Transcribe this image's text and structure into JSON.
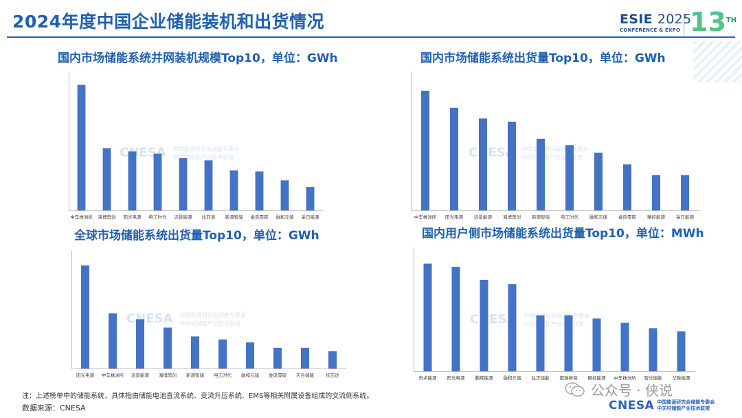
{
  "header": {
    "title": "2024年度中国企业储能装机和出货情况",
    "esie_name": "ESIE",
    "esie_year": "2025",
    "esie_sub": "CONFERENCE & EXPO",
    "edition_num": "13",
    "edition_sup": "TH"
  },
  "watermark": {
    "brand": "CNESA",
    "line1": "中国能源研究会储能专委会",
    "line2": "中关村储能产业技术联盟"
  },
  "footer": {
    "note": "注：上述榜单中的储能系统，具体指由储能电池直流系统、变流升压系统、EMS等相关附属设备组成的交流侧系统。",
    "source": "数据来源：CNESA",
    "wechat": "公众号 · 侠说",
    "logo_brand": "CNESA",
    "logo_line1": "中国能源研究会储能专委会",
    "logo_line2": "中关村储能产业技术联盟"
  },
  "colors": {
    "bar": "#4472c4",
    "title": "#1f5fb0",
    "axis": "#bfbfbf"
  },
  "chart_data": [
    {
      "type": "bar",
      "title": "国内市场储能系统并网装机规模Top10，单位：GWh",
      "categories": [
        "中车株洲所",
        "海博思创",
        "阳光电源",
        "电工时代",
        "远景能源",
        "比亚迪",
        "新源智储",
        "金风零碳",
        "融和元储",
        "采日能源"
      ],
      "values": [
        11.3,
        5.6,
        5.3,
        5.1,
        4.7,
        4.5,
        3.6,
        3.5,
        2.7,
        2.1
      ],
      "ylim": [
        0,
        12.5
      ],
      "grid": false,
      "legend": "none"
    },
    {
      "type": "bar",
      "title": "国内市场储能系统出货量Top10，单位：GWh",
      "categories": [
        "中车株洲所",
        "阳光电源",
        "远景能源",
        "海博思创",
        "新源智储",
        "电工时代",
        "融和元储",
        "金风零碳",
        "精控能源",
        "采日能源"
      ],
      "values": [
        11.2,
        9.6,
        8.6,
        8.3,
        6.7,
        6.1,
        5.4,
        4.3,
        3.3,
        3.3
      ],
      "ylim": [
        0,
        13
      ],
      "grid": false,
      "legend": "none"
    },
    {
      "type": "bar",
      "title": "全球市场储能系统出货量Top10，单位：GWh",
      "categories": [
        "阳光电源",
        "中车株洲所",
        "远景能源",
        "海博思创",
        "新源智储",
        "电工时代",
        "融和元储",
        "金风零碳",
        "天合储能",
        "坎芘达"
      ],
      "values": [
        20.9,
        11.2,
        10.0,
        8.3,
        6.5,
        5.9,
        5.3,
        4.2,
        4.2,
        3.5
      ],
      "ylim": [
        0,
        24
      ],
      "grid": false,
      "legend": "none"
    },
    {
      "type": "bar",
      "title": "国内用户侧市场储能系统出货量Top10，单位：MWh",
      "categories": [
        "奇点能源",
        "阳光电源",
        "鹏辉能源",
        "融和元储",
        "弘正储能",
        "南瑞继保",
        "精控能源",
        "中车株洲所",
        "智光储能",
        "华致能源"
      ],
      "values": [
        1000,
        970,
        850,
        810,
        520,
        520,
        490,
        450,
        400,
        370
      ],
      "ylim": [
        0,
        1150
      ],
      "grid": false,
      "legend": "none"
    }
  ]
}
